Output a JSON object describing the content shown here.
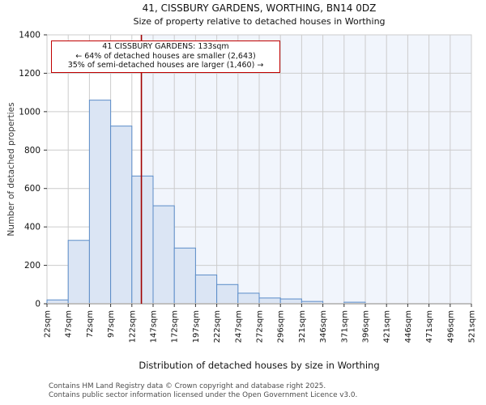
{
  "header": {
    "title": "41, CISSBURY GARDENS, WORTHING, BN14 0DZ",
    "subtitle": "Size of property relative to detached houses in Worthing"
  },
  "annotation": {
    "line1": "41 CISSBURY GARDENS: 133sqm",
    "line2": "← 64% of detached houses are smaller (2,643)",
    "line3": "35% of semi-detached houses are larger (1,460) →"
  },
  "axes": {
    "y_title": "Number of detached properties",
    "x_title": "Distribution of detached houses by size in Worthing",
    "y_ticks": [
      0,
      200,
      400,
      600,
      800,
      1000,
      1200,
      1400
    ],
    "x_tick_labels": [
      "22sqm",
      "47sqm",
      "72sqm",
      "97sqm",
      "122sqm",
      "147sqm",
      "172sqm",
      "197sqm",
      "222sqm",
      "247sqm",
      "272sqm",
      "296sqm",
      "321sqm",
      "346sqm",
      "371sqm",
      "396sqm",
      "421sqm",
      "446sqm",
      "471sqm",
      "496sqm",
      "521sqm"
    ]
  },
  "footer": {
    "line1": "Contains HM Land Registry data © Crown copyright and database right 2025.",
    "line2": "Contains public sector information licensed under the Open Government Licence v3.0."
  },
  "chart_data": {
    "type": "bar",
    "title": "41, CISSBURY GARDENS, WORTHING, BN14 0DZ — Size of property relative to detached houses in Worthing",
    "xlabel": "Distribution of detached houses by size in Worthing",
    "ylabel": "Number of detached properties",
    "categories": [
      "22sqm",
      "47sqm",
      "72sqm",
      "97sqm",
      "122sqm",
      "147sqm",
      "172sqm",
      "197sqm",
      "222sqm",
      "247sqm",
      "272sqm",
      "296sqm",
      "321sqm",
      "346sqm",
      "371sqm",
      "396sqm",
      "421sqm",
      "446sqm",
      "471sqm",
      "496sqm"
    ],
    "values": [
      20,
      330,
      1060,
      925,
      665,
      510,
      290,
      150,
      100,
      55,
      30,
      25,
      12,
      0,
      8,
      0,
      0,
      0,
      0,
      0
    ],
    "bin_start_sqm": 22,
    "bin_width_sqm": 24.95,
    "x_range_sqm": [
      22,
      521
    ],
    "ylim": [
      0,
      1400
    ],
    "grid": "on",
    "marker": {
      "value_sqm": 133,
      "label": "133sqm"
    },
    "colors": {
      "bar_fill": "#dbe5f4",
      "bar_edge": "#5b8cc8",
      "marker_line": "#a00000",
      "annotation_border": "#c00000",
      "grid_line": "#cccccc",
      "shade_right_of_marker": "#f1f5fc",
      "tick": "#333333"
    }
  }
}
